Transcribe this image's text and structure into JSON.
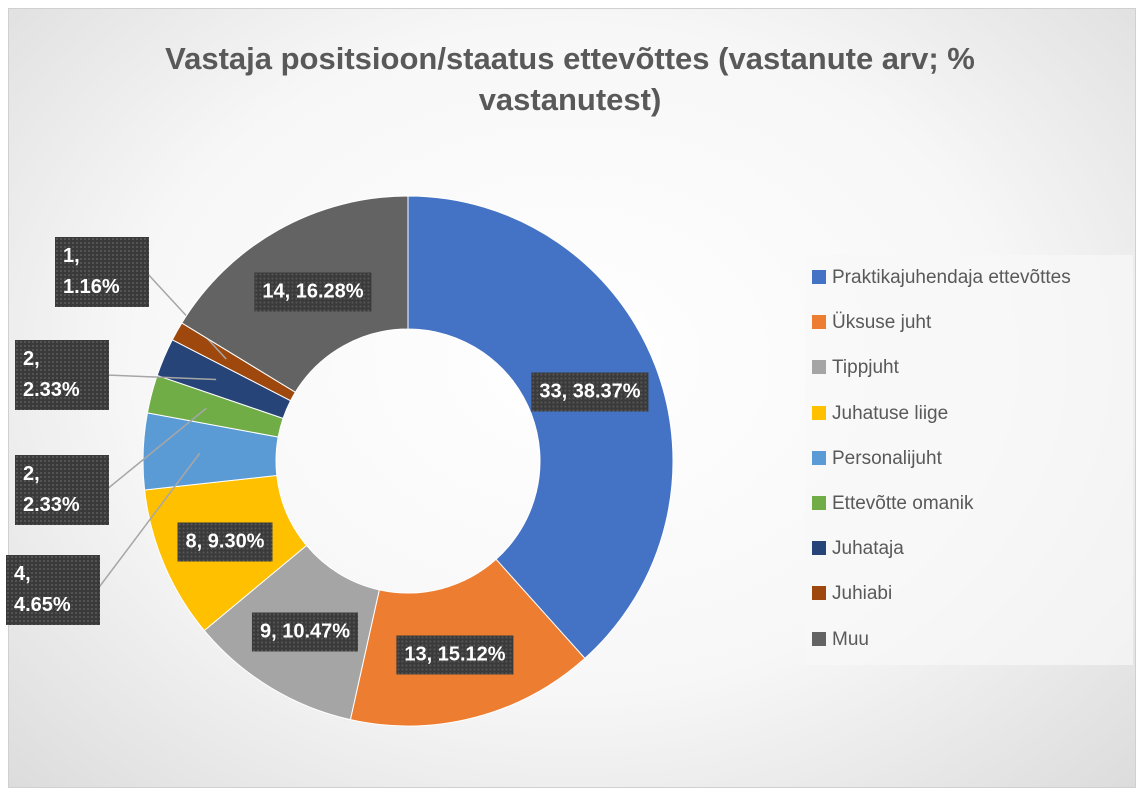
{
  "chart_data": {
    "type": "donut",
    "title": "Vastaja positsioon/staatus ettevõttes (vastanute arv; % vastanutest)",
    "categories": [
      "Praktikajuhendaja ettevõttes",
      "Üksuse juht",
      "Tippjuht",
      "Juhatuse liige",
      "Personalijuht",
      "Ettevõtte omanik",
      "Juhataja",
      "Juhiabi",
      "Muu"
    ],
    "values": [
      33,
      13,
      9,
      8,
      4,
      2,
      2,
      1,
      14
    ],
    "value_labels": [
      "33, 38.37%",
      "13, 15.12%",
      "9, 10.47%",
      "8, 9.30%",
      "4, 4.65%",
      "2, 2.33%",
      "2, 2.33%",
      "1, 1.16%",
      "14, 16.28%"
    ],
    "colors": [
      "#4472c4",
      "#ed7d31",
      "#a5a5a5",
      "#ffc000",
      "#5b9bd5",
      "#70ad47",
      "#264478",
      "#9e480e",
      "#636363"
    ],
    "legend": "right"
  }
}
